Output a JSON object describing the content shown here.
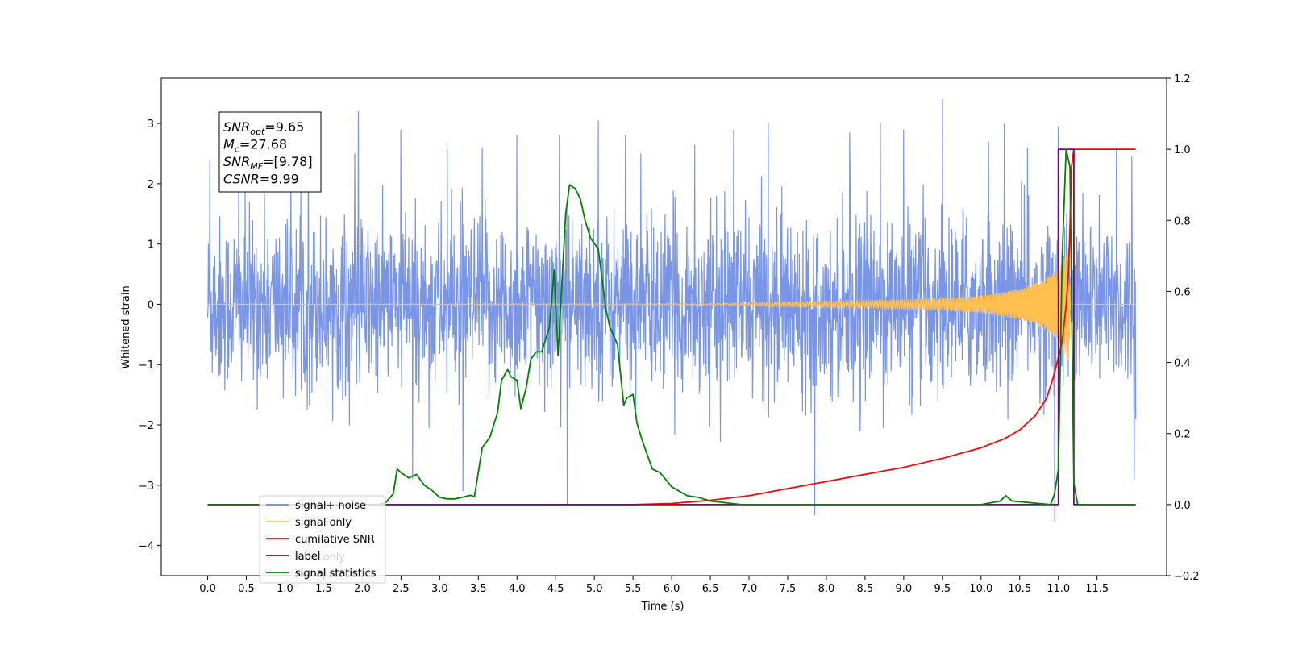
{
  "chart_data": {
    "type": "line",
    "xlabel": "Time (s)",
    "ylabel": "Whitened strain",
    "xlim": [
      -0.6,
      12.4
    ],
    "ylim": [
      -4.5,
      3.75
    ],
    "ylim_right": [
      -0.2,
      1.2
    ],
    "xticks": [
      "0.0",
      "0.5",
      "1.0",
      "1.5",
      "2.0",
      "2.5",
      "3.0",
      "3.5",
      "4.0",
      "4.5",
      "5.0",
      "5.5",
      "6.0",
      "6.5",
      "7.0",
      "7.5",
      "8.0",
      "8.5",
      "9.0",
      "9.5",
      "10.0",
      "10.5",
      "11.0",
      "11.5"
    ],
    "yticks_left": [
      "3",
      "2",
      "1",
      "0",
      "−1",
      "−2",
      "−3",
      "−4"
    ],
    "yticks_right": [
      "1.2",
      "1.0",
      "0.8",
      "0.6",
      "0.4",
      "0.2",
      "0.0",
      "−0.2"
    ],
    "annotation": {
      "lines": [
        {
          "main": "SNR",
          "sub": "opt",
          "rest": "=9.65"
        },
        {
          "main": "M",
          "sub": "c",
          "rest": "=27.68"
        },
        {
          "main": "SNR",
          "sub": "MF",
          "rest": "=[9.78]"
        },
        {
          "main": "CSNR",
          "sub": "",
          "rest": "=9.99"
        }
      ]
    },
    "legend": {
      "placement": "lower-left",
      "entries": [
        {
          "label": "signal+ noise",
          "color": "#6a8ae6"
        },
        {
          "label": "signal only",
          "color": "#ffc04d"
        },
        {
          "label": "cumilative SNR",
          "color": "#ff0000"
        },
        {
          "label": "label",
          "color": "#800080"
        },
        {
          "label": "signal statistics",
          "color": "#008000"
        }
      ],
      "background_text": [
        "label only",
        "signal statistics"
      ]
    },
    "series": [
      {
        "name": "signal+ noise",
        "axis": "left",
        "color": "#6a8ae6",
        "x_start": 0.0,
        "x_end": 12.0,
        "envelope_typical": 1.9,
        "peaks": [
          [
            0.03,
            2.38
          ],
          [
            0.4,
            2.0
          ],
          [
            1.3,
            2.5
          ],
          [
            1.9,
            2.5
          ],
          [
            1.95,
            3.2
          ],
          [
            2.5,
            2.9
          ],
          [
            2.65,
            -2.9
          ],
          [
            3.1,
            2.6
          ],
          [
            3.3,
            -3.1
          ],
          [
            3.55,
            2.6
          ],
          [
            4.0,
            2.8
          ],
          [
            4.55,
            2.8
          ],
          [
            4.65,
            -3.35
          ],
          [
            5.05,
            3.05
          ],
          [
            5.4,
            2.8
          ],
          [
            5.6,
            2.5
          ],
          [
            6.3,
            2.65
          ],
          [
            6.8,
            2.9
          ],
          [
            7.25,
            3.0
          ],
          [
            7.85,
            -3.5
          ],
          [
            8.3,
            2.85
          ],
          [
            8.7,
            3.0
          ],
          [
            9.0,
            2.9
          ],
          [
            9.5,
            3.4
          ],
          [
            10.1,
            2.7
          ],
          [
            10.3,
            3.0
          ],
          [
            10.6,
            2.6
          ],
          [
            10.95,
            -3.6
          ],
          [
            11.0,
            2.95
          ],
          [
            11.75,
            2.6
          ],
          [
            11.95,
            2.45
          ],
          [
            11.98,
            -2.9
          ]
        ]
      },
      {
        "name": "signal only",
        "axis": "left",
        "color": "#ffc04d",
        "x_start": 0.0,
        "x_end": 12.0,
        "chirp_amplitude": [
          [
            0.0,
            0.0
          ],
          [
            6.5,
            0.01
          ],
          [
            7.5,
            0.04
          ],
          [
            8.5,
            0.06
          ],
          [
            9.5,
            0.1
          ],
          [
            10.0,
            0.14
          ],
          [
            10.5,
            0.25
          ],
          [
            10.8,
            0.4
          ],
          [
            11.0,
            0.6
          ],
          [
            11.1,
            0.85
          ],
          [
            11.13,
            0.95
          ],
          [
            11.16,
            0.0
          ],
          [
            12.0,
            0.0
          ]
        ]
      },
      {
        "name": "cumilative SNR",
        "axis": "right",
        "color": "#ff0000",
        "x": [
          0.0,
          5.5,
          6.0,
          6.5,
          7.0,
          7.5,
          8.0,
          8.5,
          9.0,
          9.5,
          10.0,
          10.3,
          10.5,
          10.7,
          10.85,
          10.95,
          11.05,
          11.1,
          11.13,
          11.15,
          11.17,
          11.2,
          12.0
        ],
        "y": [
          0.0,
          0.0,
          0.003,
          0.012,
          0.025,
          0.045,
          0.065,
          0.085,
          0.105,
          0.13,
          0.16,
          0.185,
          0.21,
          0.25,
          0.3,
          0.37,
          0.46,
          0.56,
          0.65,
          0.78,
          0.95,
          1.0,
          1.0
        ]
      },
      {
        "name": "label",
        "axis": "right",
        "color": "#800080",
        "x": [
          0.0,
          11.0,
          11.0,
          11.2,
          11.2,
          12.0
        ],
        "y": [
          0.0,
          0.0,
          1.0,
          1.0,
          0.0,
          0.0
        ]
      },
      {
        "name": "signal statistics",
        "axis": "right",
        "color": "#008000",
        "x": [
          0.0,
          2.0,
          2.1,
          2.2,
          2.3,
          2.4,
          2.45,
          2.5,
          2.6,
          2.7,
          2.8,
          2.9,
          3.0,
          3.1,
          3.2,
          3.3,
          3.4,
          3.45,
          3.55,
          3.65,
          3.75,
          3.8,
          3.88,
          3.92,
          4.0,
          4.05,
          4.12,
          4.18,
          4.25,
          4.32,
          4.42,
          4.48,
          4.53,
          4.63,
          4.68,
          4.75,
          4.82,
          4.88,
          4.95,
          5.05,
          5.15,
          5.2,
          5.3,
          5.38,
          5.42,
          5.5,
          5.55,
          5.62,
          5.75,
          5.85,
          6.0,
          6.2,
          6.35,
          6.5,
          6.7,
          6.9,
          7.2,
          8.0,
          9.0,
          10.0,
          10.25,
          10.32,
          10.4,
          10.9,
          10.95,
          11.0,
          11.05,
          11.1,
          11.15,
          11.2,
          11.25,
          11.35,
          12.0
        ],
        "y": [
          0.0,
          0.0,
          0.0,
          0.0,
          0.005,
          0.03,
          0.1,
          0.09,
          0.075,
          0.085,
          0.055,
          0.04,
          0.02,
          0.016,
          0.016,
          0.021,
          0.026,
          0.022,
          0.16,
          0.19,
          0.26,
          0.35,
          0.38,
          0.36,
          0.35,
          0.27,
          0.33,
          0.41,
          0.43,
          0.43,
          0.5,
          0.66,
          0.42,
          0.82,
          0.9,
          0.89,
          0.86,
          0.8,
          0.75,
          0.72,
          0.55,
          0.5,
          0.45,
          0.28,
          0.3,
          0.31,
          0.23,
          0.18,
          0.1,
          0.09,
          0.05,
          0.025,
          0.02,
          0.01,
          0.005,
          0.0,
          0.0,
          0.0,
          0.0,
          0.0,
          0.01,
          0.025,
          0.01,
          0.0,
          0.03,
          0.1,
          0.7,
          1.0,
          0.95,
          0.06,
          0.0,
          0.0,
          0.0
        ]
      }
    ]
  }
}
